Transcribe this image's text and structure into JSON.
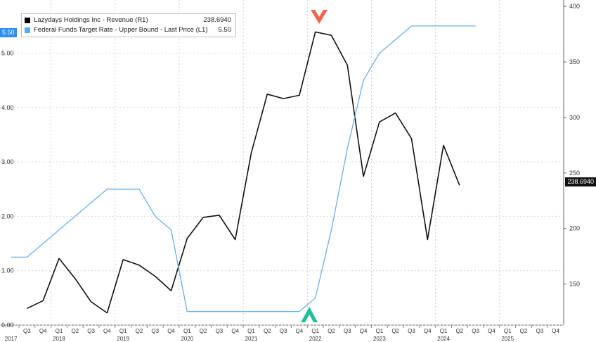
{
  "chart_data": {
    "type": "line",
    "title": "",
    "legend": [
      {
        "name": "Lazydays Holdings Inc - Revenue (R1)",
        "last": "238.6940",
        "color": "#000000"
      },
      {
        "name": "Federal Funds Target Rate - Upper Bound - Last Price (L1)",
        "last": "5.50",
        "color": "#5aa8f0"
      }
    ],
    "last_value_tags": {
      "left": "5.50",
      "right": "238.6940"
    },
    "quarter_labels": [
      "Q3",
      "Q4",
      "Q1",
      "Q2",
      "Q3",
      "Q4",
      "Q1",
      "Q2",
      "Q3",
      "Q4",
      "Q1",
      "Q2",
      "Q3",
      "Q4",
      "Q1",
      "Q2",
      "Q3",
      "Q4",
      "Q1",
      "Q2",
      "Q3",
      "Q4",
      "Q1",
      "Q2",
      "Q3",
      "Q4",
      "Q1",
      "Q2",
      "Q3",
      "Q4",
      "Q1",
      "Q2",
      "Q3",
      "Q4"
    ],
    "years": [
      {
        "label": "2017",
        "quarter_index": 0.5
      },
      {
        "label": "2018",
        "quarter_index": 3.5
      },
      {
        "label": "2019",
        "quarter_index": 7.5
      },
      {
        "label": "2020",
        "quarter_index": 11.5
      },
      {
        "label": "2021",
        "quarter_index": 15.5
      },
      {
        "label": "2022",
        "quarter_index": 19.5
      },
      {
        "label": "2023",
        "quarter_index": 23.5
      },
      {
        "label": "2024",
        "quarter_index": 27.5
      },
      {
        "label": "2025",
        "quarter_index": 31.5
      }
    ],
    "left_axis": {
      "min": 0,
      "max": 5.9,
      "ticks": [
        "0.00",
        "1.00",
        "2.00",
        "3.00",
        "4.00",
        "5.00"
      ]
    },
    "right_axis": {
      "min": 113,
      "max": 402,
      "ticks": [
        "150",
        "200",
        "250",
        "300",
        "350",
        "400"
      ]
    },
    "series": [
      {
        "name": "Lazydays Holdings Inc - Revenue (R1)",
        "axis": "right",
        "color": "#111111",
        "points": [
          [
            0,
            128
          ],
          [
            1,
            135
          ],
          [
            2,
            173
          ],
          [
            3,
            155
          ],
          [
            4,
            134
          ],
          [
            5,
            124
          ],
          [
            6,
            172
          ],
          [
            7,
            167
          ],
          [
            8,
            157
          ],
          [
            9,
            144
          ],
          [
            10,
            191
          ],
          [
            11,
            210
          ],
          [
            12,
            212
          ],
          [
            13,
            190
          ],
          [
            14,
            268
          ],
          [
            15,
            321
          ],
          [
            16,
            317
          ],
          [
            17,
            320
          ],
          [
            18,
            377
          ],
          [
            19,
            374
          ],
          [
            20,
            347
          ],
          [
            21,
            247
          ],
          [
            22,
            296
          ],
          [
            23,
            304
          ],
          [
            24,
            281
          ],
          [
            25,
            190
          ],
          [
            26,
            275
          ],
          [
            27,
            239
          ]
        ]
      },
      {
        "name": "Federal Funds Target Rate - Upper Bound - Last Price (L1)",
        "axis": "left",
        "color": "#66b0f2",
        "points": [
          [
            -1,
            1.25
          ],
          [
            0,
            1.25
          ],
          [
            1,
            1.5
          ],
          [
            2,
            1.75
          ],
          [
            3,
            2.0
          ],
          [
            4,
            2.25
          ],
          [
            5,
            2.5
          ],
          [
            6,
            2.5
          ],
          [
            7,
            2.5
          ],
          [
            8,
            2.0
          ],
          [
            9,
            1.75
          ],
          [
            10,
            0.25
          ],
          [
            11,
            0.25
          ],
          [
            12,
            0.25
          ],
          [
            13,
            0.25
          ],
          [
            14,
            0.25
          ],
          [
            15,
            0.25
          ],
          [
            16,
            0.25
          ],
          [
            17,
            0.25
          ],
          [
            18,
            0.5
          ],
          [
            19,
            1.75
          ],
          [
            20,
            3.25
          ],
          [
            21,
            4.5
          ],
          [
            22,
            5.0
          ],
          [
            23,
            5.25
          ],
          [
            24,
            5.5
          ],
          [
            25,
            5.5
          ],
          [
            26,
            5.5
          ],
          [
            27,
            5.5
          ],
          [
            28,
            5.5
          ]
        ]
      }
    ],
    "annotations": [
      {
        "kind": "sell-arrow",
        "color": "#f2624d",
        "quarter_index": 18.5
      },
      {
        "kind": "buy-arrow",
        "color": "#1fbf9b",
        "quarter_index": 17.8
      }
    ],
    "grid": true
  }
}
